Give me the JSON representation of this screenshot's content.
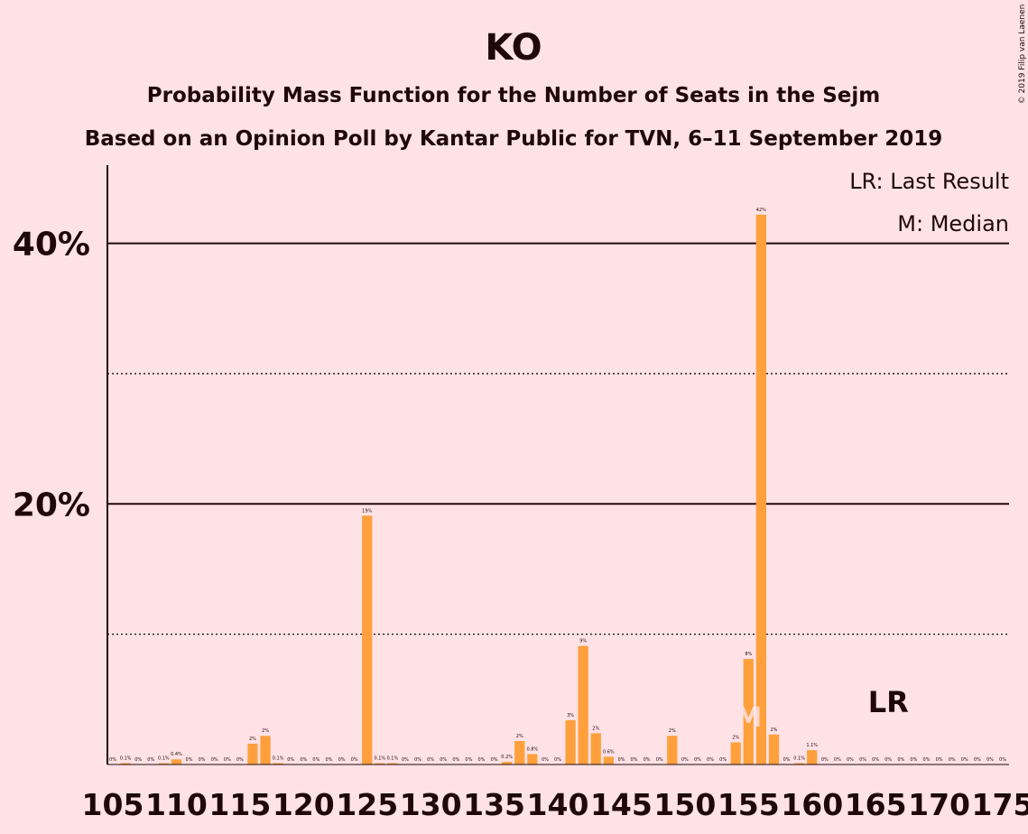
{
  "chart_data": {
    "type": "bar",
    "title": "KO",
    "subtitle": "Probability Mass Function for the Number of Seats in the Sejm",
    "subtitle2": "Based on an Opinion Poll by Kantar Public for TVN, 6–11 September 2019",
    "copyright": "© 2019 Filip van Laenen",
    "legend_last_result": "LR: Last Result",
    "legend_median": "M: Median",
    "median": 155,
    "median_label": "M",
    "last_result": 166,
    "last_result_label": "LR",
    "color": "#ffa03c",
    "x": [
      105,
      106,
      107,
      108,
      109,
      110,
      111,
      112,
      113,
      114,
      115,
      116,
      117,
      118,
      119,
      120,
      121,
      122,
      123,
      124,
      125,
      126,
      127,
      128,
      129,
      130,
      131,
      132,
      133,
      134,
      135,
      136,
      137,
      138,
      139,
      140,
      141,
      142,
      143,
      144,
      145,
      146,
      147,
      148,
      149,
      150,
      151,
      152,
      153,
      154,
      155,
      156,
      157,
      158,
      159,
      160,
      161,
      162,
      163,
      164,
      165,
      166,
      167,
      168,
      169,
      170,
      171,
      172,
      173,
      174,
      175
    ],
    "values": [
      0,
      0.1,
      0,
      0,
      0.1,
      0.4,
      0,
      0,
      0,
      0,
      0,
      1.6,
      2.2,
      0.1,
      0,
      0,
      0,
      0,
      0,
      0,
      19.1,
      0.1,
      0.1,
      0,
      0,
      0,
      0,
      0,
      0,
      0,
      0,
      0.2,
      1.8,
      0.8,
      0,
      0,
      3.4,
      9.1,
      2.4,
      0.6,
      0,
      0,
      0,
      0,
      2.2,
      0,
      0,
      0,
      0,
      1.7,
      8.1,
      42.2,
      2.3,
      0,
      0.1,
      1.1,
      0,
      0,
      0,
      0,
      0,
      0,
      0,
      0,
      0,
      0,
      0,
      0,
      0,
      0,
      0
    ],
    "value_labels": [
      "0%",
      "0.1%",
      "0%",
      "0%",
      "0.1%",
      "0.4%",
      "0%",
      "0%",
      "0%",
      "0%",
      "0%",
      "2%",
      "2%",
      "0.1%",
      "0%",
      "0%",
      "0%",
      "0%",
      "0%",
      "0%",
      "19%",
      "0.1%",
      "0.1%",
      "0%",
      "0%",
      "0%",
      "0%",
      "0%",
      "0%",
      "0%",
      "0%",
      "0.2%",
      "2%",
      "0.8%",
      "0%",
      "0%",
      "3%",
      "9%",
      "2%",
      "0.6%",
      "0%",
      "0%",
      "0%",
      "0%",
      "2%",
      "0%",
      "0%",
      "0%",
      "0%",
      "2%",
      "8%",
      "42%",
      "2%",
      "0%",
      "0.1%",
      "1.1%",
      "0%",
      "0%",
      "0%",
      "0%",
      "0%",
      "0%",
      "0%",
      "0%",
      "0%",
      "0%",
      "0%",
      "0%",
      "0%",
      "0%",
      "0%"
    ],
    "xlim": [
      105,
      175
    ],
    "xticks": [
      105,
      110,
      115,
      120,
      125,
      130,
      135,
      140,
      145,
      150,
      155,
      160,
      165,
      170,
      175
    ],
    "ylim": [
      0,
      46
    ],
    "yticks": [
      {
        "value": 20,
        "label": "20%"
      },
      {
        "value": 40,
        "label": "40%"
      }
    ],
    "minor_yticks": [
      10,
      30
    ],
    "grid": true
  }
}
